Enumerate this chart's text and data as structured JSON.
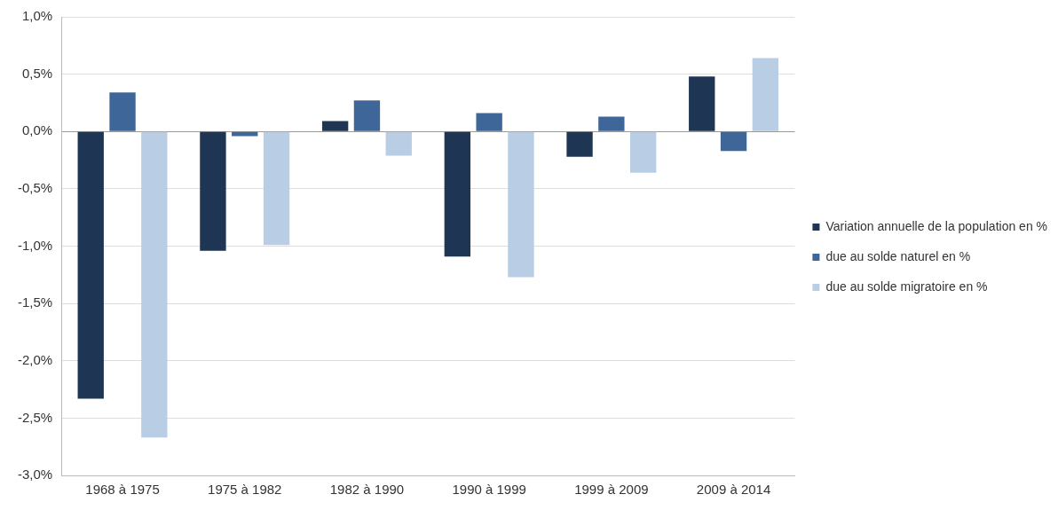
{
  "chart_data": {
    "type": "bar",
    "categories": [
      "1968 à 1975",
      "1975 à 1982",
      "1982 à 1990",
      "1990 à 1999",
      "1999 à 2009",
      "2009 à 2014"
    ],
    "series": [
      {
        "name": "Variation annuelle de la population en %",
        "color": "#1f3554",
        "values": [
          -2.33,
          -1.04,
          0.09,
          -1.09,
          -0.22,
          0.48
        ]
      },
      {
        "name": "due au solde naturel en %",
        "color": "#3e6699",
        "values": [
          0.34,
          -0.04,
          0.27,
          0.16,
          0.13,
          -0.17
        ]
      },
      {
        "name": "due au solde migratoire en %",
        "color": "#b9cde5",
        "values": [
          -2.67,
          -0.99,
          -0.21,
          -1.27,
          -0.36,
          0.64
        ]
      }
    ],
    "ylim": [
      -3,
      1
    ],
    "yticks": [
      {
        "value": -3,
        "label": "-3,0%"
      },
      {
        "value": -2.5,
        "label": "-2,5%"
      },
      {
        "value": -2,
        "label": "-2,0%"
      },
      {
        "value": -1.5,
        "label": "-1,5%"
      },
      {
        "value": -1,
        "label": "-1,0%"
      },
      {
        "value": -0.5,
        "label": "-0,5%"
      },
      {
        "value": 0,
        "label": "0,0%"
      },
      {
        "value": 0.5,
        "label": "0,5%"
      },
      {
        "value": 1,
        "label": "1,0%"
      }
    ],
    "grid": "y",
    "legend": "right"
  }
}
